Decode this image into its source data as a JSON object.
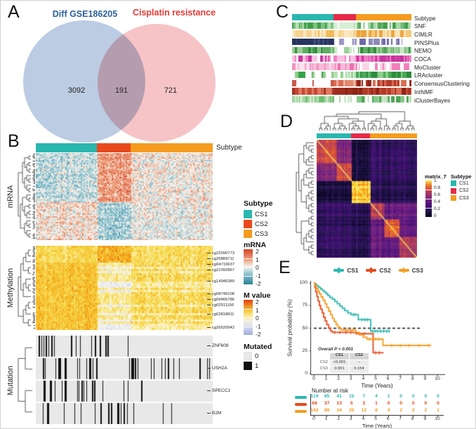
{
  "colors": {
    "cs1": "#2ab7ae",
    "cs2": "#e8491d",
    "cs2_crimson": "#e62a49",
    "cs3": "#f59c20",
    "venn_left_fill": "#92add0",
    "venn_right_fill": "#f0a0a4",
    "venn_left_label": "#2c5f9b",
    "venn_right_label": "#e53935",
    "mutated_0": "#e8e8e8",
    "mutated_1": "#111111"
  },
  "panel_a": {
    "label": "A",
    "left_set": "Diff GSE186205",
    "right_set": "Cisplatin resistance",
    "left_count": "3092",
    "overlap_count": "191",
    "right_count": "721"
  },
  "panel_b": {
    "label": "B",
    "top_annotation": "Subtype",
    "sections": [
      "mRNA",
      "Methylation",
      "Mutation"
    ],
    "methylation_labels": [
      "cg22090773",
      "cg25889711",
      "cg04719637",
      "cg21092867",
      "cg14946389",
      "cg08749108",
      "cg09465786",
      "cg02511156",
      "cg02818811",
      "cg26520942"
    ],
    "mutation_labels": [
      "ZNF609",
      "USH2A",
      "SPECC1",
      "B2M"
    ],
    "legend_subtype": {
      "title": "Subtype",
      "items": [
        "CS1",
        "CS2",
        "CS3"
      ]
    },
    "legend_mrna": {
      "title": "mRNA",
      "ticks": [
        "2",
        "1",
        "0",
        "-1",
        "-2"
      ]
    },
    "legend_mvalue": {
      "title": "M value",
      "ticks": [
        "2",
        "1",
        "0",
        "-1",
        "-2"
      ]
    },
    "legend_mutated": {
      "title": "Mutated",
      "items": [
        "0",
        "1"
      ]
    }
  },
  "panel_c": {
    "label": "C",
    "tracks": [
      "Subtype",
      "SNF",
      "CIMLR",
      "PINSPlus",
      "NEMO",
      "COCA",
      "MoCluster",
      "LRAcluster",
      "ConsensusClustering",
      "IntNMF",
      "iClusterBayes"
    ]
  },
  "panel_d": {
    "label": "D",
    "matrix_legend": {
      "title": "matrix_7",
      "ticks": [
        "1",
        "0.8",
        "0.6",
        "0.4",
        "0.2",
        "0"
      ]
    },
    "subtype_legend": {
      "title": "Subtype",
      "items": [
        "CS1",
        "CS2",
        "CS3"
      ]
    }
  },
  "panel_e": {
    "label": "E",
    "ylabel": "Survival probability (%)",
    "xlabel": "Time (Years)",
    "risk_title": "Number at risk"
  },
  "palettes": {
    "mrna_stops": [
      [
        0,
        "#27839c"
      ],
      [
        0.3,
        "#8fc3cf"
      ],
      [
        0.5,
        "#f6f4ef"
      ],
      [
        0.68,
        "#f0a887"
      ],
      [
        1,
        "#d64426"
      ]
    ],
    "mvalue_stops": [
      [
        0,
        "#9fadde"
      ],
      [
        0.32,
        "#e9ecf6"
      ],
      [
        0.46,
        "#fbf5d8"
      ],
      [
        0.62,
        "#f7dd55"
      ],
      [
        0.78,
        "#f4b01e"
      ],
      [
        0.9,
        "#ed7512"
      ],
      [
        1,
        "#e2400b"
      ]
    ],
    "consensus_stops": [
      [
        0,
        "#06051a"
      ],
      [
        0.14,
        "#1d1147"
      ],
      [
        0.3,
        "#451077"
      ],
      [
        0.45,
        "#6b1d81"
      ],
      [
        0.58,
        "#90306f"
      ],
      [
        0.7,
        "#b73d56"
      ],
      [
        0.8,
        "#dc5039"
      ],
      [
        0.88,
        "#f07d1b"
      ],
      [
        0.95,
        "#fbb60d"
      ],
      [
        1,
        "#f8e763"
      ]
    ]
  },
  "chart_data": [
    {
      "type": "venn",
      "sets": [
        {
          "label": "Diff GSE186205",
          "unique": 3092
        },
        {
          "label": "Cisplatin resistance",
          "unique": 721
        }
      ],
      "overlap": 191
    },
    {
      "type": "heatmap",
      "panel": "B",
      "blocks": [
        "mRNA",
        "Methylation",
        "Mutation"
      ],
      "top_annotation": "Subtype",
      "subtype_fractions": [
        0.345,
        0.19,
        0.465
      ],
      "mrna_range": [
        -2,
        2
      ],
      "mvalue_range": [
        -2,
        2
      ],
      "mutated_values": [
        0,
        1
      ]
    },
    {
      "type": "heatmap",
      "panel": "C",
      "tracks": [
        "Subtype",
        "SNF",
        "CIMLR",
        "PINSPlus",
        "NEMO",
        "COCA",
        "MoCluster",
        "LRAcluster",
        "ConsensusClustering",
        "IntNMF",
        "iClusterBayes"
      ],
      "subtype_fractions": [
        0.345,
        0.19,
        0.465
      ]
    },
    {
      "type": "heatmap",
      "panel": "D",
      "name": "matrix_7",
      "scale": [
        0,
        1
      ],
      "subtype_fractions": [
        0.345,
        0.19,
        0.465
      ],
      "groups": [
        "CS1",
        "CS2",
        "CS3"
      ]
    },
    {
      "type": "line",
      "variant": "kaplan_meier",
      "panel": "E",
      "xlabel": "Time (Years)",
      "ylabel": "Survival probability (%)",
      "xlim": [
        0,
        10
      ],
      "ylim": [
        0,
        100
      ],
      "xticks": [
        0,
        1,
        2,
        3,
        4,
        5,
        6,
        7,
        8,
        9,
        10
      ],
      "yticks": [
        0,
        25,
        50,
        75,
        100
      ],
      "reference_line_y": 50,
      "series": [
        {
          "name": "CS1",
          "color": "#2ab7ae",
          "steps": [
            [
              0,
              100
            ],
            [
              0.12,
              98.3
            ],
            [
              0.25,
              96.6
            ],
            [
              0.4,
              95
            ],
            [
              0.55,
              93.2
            ],
            [
              0.7,
              91.5
            ],
            [
              0.85,
              89.8
            ],
            [
              1.0,
              88
            ],
            [
              1.15,
              86
            ],
            [
              1.3,
              84
            ],
            [
              1.5,
              82
            ],
            [
              1.7,
              79.5
            ],
            [
              1.9,
              77
            ],
            [
              2.1,
              74.5
            ],
            [
              2.3,
              72
            ],
            [
              2.5,
              69.5
            ],
            [
              2.75,
              67
            ],
            [
              3.0,
              65
            ],
            [
              3.6,
              59.5
            ],
            [
              4.6,
              46.8
            ],
            [
              6.15,
              46.8
            ]
          ],
          "censors": [
            [
              3.2,
              65
            ],
            [
              3.35,
              65
            ],
            [
              3.9,
              59.5
            ],
            [
              4.15,
              59.5
            ],
            [
              4.35,
              59.5
            ],
            [
              4.75,
              46.8
            ],
            [
              4.95,
              46.8
            ],
            [
              5.15,
              46.8
            ],
            [
              5.4,
              46.8
            ],
            [
              5.65,
              46.8
            ],
            [
              5.9,
              46.8
            ],
            [
              6.1,
              46.8
            ]
          ]
        },
        {
          "name": "CS2",
          "color": "#e8491d",
          "steps": [
            [
              0,
              100
            ],
            [
              0.08,
              95
            ],
            [
              0.16,
              90
            ],
            [
              0.25,
              85
            ],
            [
              0.35,
              80
            ],
            [
              0.45,
              75
            ],
            [
              0.55,
              71
            ],
            [
              0.68,
              67
            ],
            [
              0.8,
              62
            ],
            [
              0.92,
              58
            ],
            [
              1.05,
              54
            ],
            [
              1.2,
              50
            ],
            [
              1.35,
              47
            ],
            [
              1.5,
              45.5
            ],
            [
              3.4,
              44
            ],
            [
              4.8,
              23
            ],
            [
              5.65,
              23
            ]
          ],
          "censors": [
            [
              1.7,
              45.5
            ],
            [
              2.1,
              45.5
            ],
            [
              2.6,
              45.5
            ],
            [
              3.0,
              45.5
            ],
            [
              3.7,
              44
            ],
            [
              4.1,
              44
            ],
            [
              5.0,
              23
            ],
            [
              5.3,
              23
            ]
          ]
        },
        {
          "name": "CS3",
          "color": "#f59c20",
          "steps": [
            [
              0,
              100
            ],
            [
              0.1,
              97
            ],
            [
              0.2,
              94
            ],
            [
              0.33,
              91
            ],
            [
              0.45,
              88
            ],
            [
              0.6,
              84.5
            ],
            [
              0.75,
              81
            ],
            [
              0.9,
              77
            ],
            [
              1.05,
              73
            ],
            [
              1.2,
              69
            ],
            [
              1.35,
              65
            ],
            [
              1.5,
              61
            ],
            [
              1.65,
              57.5
            ],
            [
              1.8,
              54
            ],
            [
              1.95,
              51.5
            ],
            [
              2.1,
              49.5
            ],
            [
              2.25,
              48
            ],
            [
              3.4,
              45.5
            ],
            [
              3.7,
              42.5
            ],
            [
              4.0,
              40
            ],
            [
              4.3,
              38
            ],
            [
              5.6,
              31
            ],
            [
              9.5,
              31
            ]
          ],
          "censors": [
            [
              2.45,
              48
            ],
            [
              2.7,
              48
            ],
            [
              2.95,
              48
            ],
            [
              3.15,
              48
            ],
            [
              4.5,
              38
            ],
            [
              4.75,
              38
            ],
            [
              5.0,
              38
            ],
            [
              5.25,
              38
            ],
            [
              6.3,
              31
            ],
            [
              7.0,
              31
            ],
            [
              7.7,
              31
            ],
            [
              8.5,
              31
            ],
            [
              9.3,
              31
            ]
          ]
        }
      ],
      "pvalues": {
        "overall": "Overall P < 0.001",
        "pairwise_cols": [
          "CS1",
          "CS2"
        ],
        "pairwise_rows": [
          [
            "CS2",
            "<0.001",
            "–"
          ],
          [
            "CS3",
            "0.001",
            "0.154"
          ]
        ]
      },
      "risk_table": {
        "title": "Number at risk",
        "times": [
          0,
          1,
          2,
          3,
          4,
          5,
          6,
          7,
          8,
          9,
          10
        ],
        "rows": [
          {
            "name": "CS1",
            "color": "#2ab7ae",
            "values": [
              119,
              85,
              41,
              15,
              7,
              4,
              1,
              0,
              0,
              0,
              0
            ]
          },
          {
            "name": "CS2",
            "color": "#e8491d",
            "values": [
              68,
              37,
              13,
              5,
              2,
              1,
              0,
              0,
              0,
              0,
              0
            ]
          },
          {
            "name": "CS3",
            "color": "#f59c20",
            "values": [
              162,
              89,
              34,
              20,
              12,
              8,
              4,
              2,
              2,
              2,
              1
            ]
          }
        ]
      }
    }
  ]
}
